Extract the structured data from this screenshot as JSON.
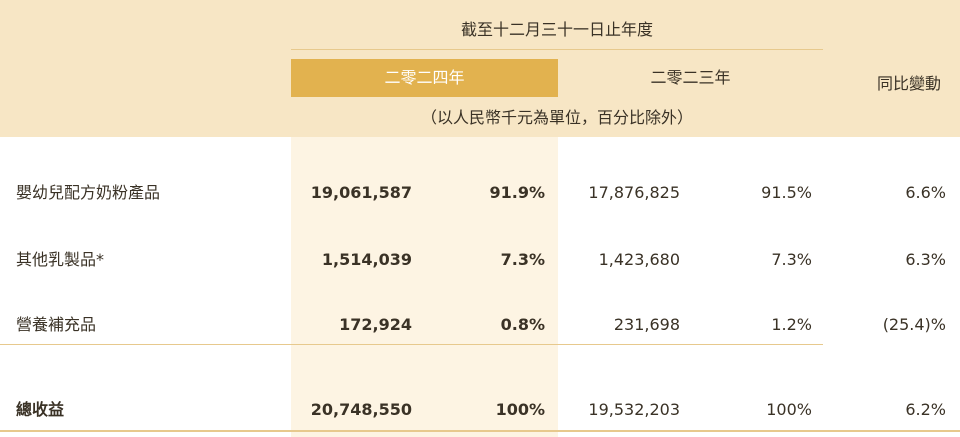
{
  "header": {
    "period": "截至十二月三十一日止年度",
    "year_2024": "二零二四年",
    "year_2023": "二零二三年",
    "yoy": "同比變動",
    "unit_note": "（以人民幣千元為單位，百分比除外）"
  },
  "rows": [
    {
      "label": "嬰幼兒配方奶粉產品",
      "v2024": "19,061,587",
      "p2024": "91.9%",
      "v2023": "17,876,825",
      "p2023": "91.5%",
      "yoy": "6.6%"
    },
    {
      "label": "其他乳製品*",
      "v2024": "1,514,039",
      "p2024": "7.3%",
      "v2023": "1,423,680",
      "p2023": "7.3%",
      "yoy": "6.3%"
    },
    {
      "label": "營養補充品",
      "v2024": "172,924",
      "p2024": "0.8%",
      "v2023": "231,698",
      "p2023": "1.2%",
      "yoy": "(25.4)%"
    }
  ],
  "total": {
    "label": "總收益",
    "v2024": "20,748,550",
    "p2024": "100%",
    "v2023": "19,532,203",
    "p2023": "100%",
    "yoy": "6.2%"
  },
  "colors": {
    "header_band": "#f7e6c5",
    "highlight_2024": "#e2b24f",
    "column_2024": "#fdf4e3",
    "rule": "#e7c98d",
    "text": "#3a3226"
  }
}
